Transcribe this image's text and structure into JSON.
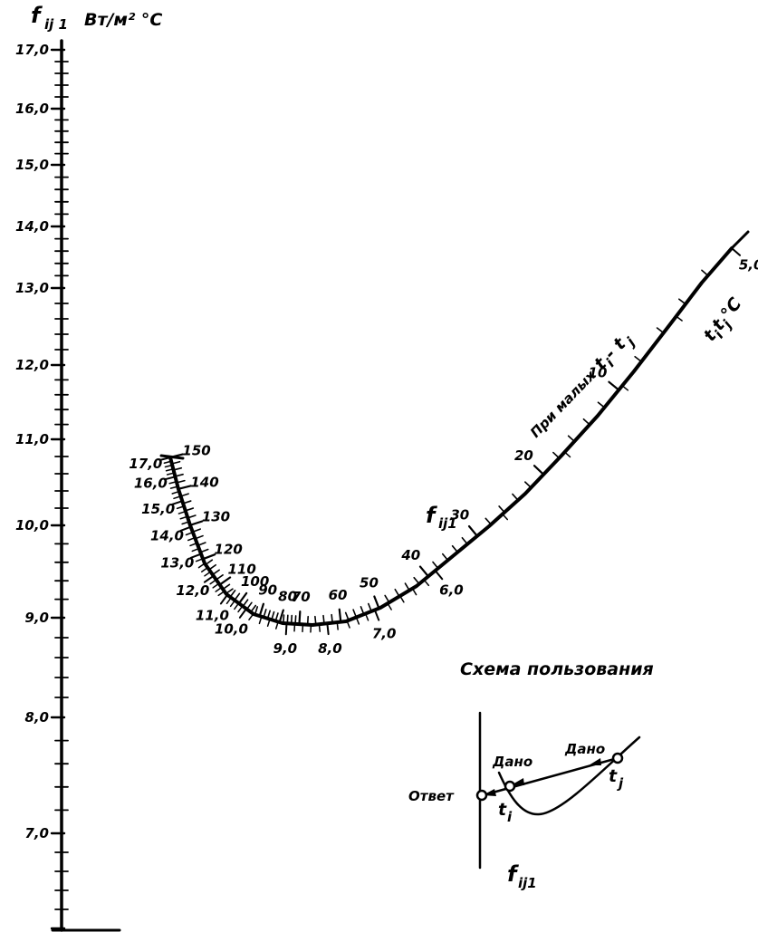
{
  "chart_data": {
    "type": "nomogram",
    "left_scale": {
      "symbol": "f",
      "subscript": "ij 1",
      "unit": "Вт/м² °С",
      "ticks": [
        "17,0",
        "16,0",
        "15,0",
        "14,0",
        "13,0",
        "12,0",
        "11,0",
        "10,0",
        "9,0",
        "8,0",
        "7,0"
      ],
      "range": [
        6.0,
        17.0
      ]
    },
    "curve_scale": {
      "temperature_labels": [
        "150",
        "140",
        "130",
        "120",
        "110",
        "100",
        "90",
        "80",
        "70",
        "60",
        "50",
        "40",
        "30",
        "20",
        "10"
      ],
      "f_labels": [
        "17,0",
        "16,0",
        "15,0",
        "14,0",
        "13,0",
        "12,0",
        "11,0",
        "10,0",
        "9,0",
        "8,0",
        "7,0",
        "6,0",
        "5,0"
      ],
      "f_symbol": "f",
      "f_subscript": "ij1",
      "small_diff_caption": "При малых",
      "small_diff_expr": "t",
      "small_diff_sub_i": "i",
      "small_diff_sep": " - t",
      "small_diff_sub_j": "j",
      "temp_axis_t": "t",
      "temp_axis_i": "i",
      "temp_axis_j": "j",
      "temp_axis_unit": "°С"
    },
    "usage_scheme": {
      "title": "Схема пользования",
      "given_1": "Дано",
      "given_2": "Дано",
      "answer": "Ответ",
      "ti_t": "t",
      "ti_i": "i",
      "tj_t": "t",
      "tj_j": "j",
      "f_t": "f",
      "f_sub": "ij1"
    }
  }
}
